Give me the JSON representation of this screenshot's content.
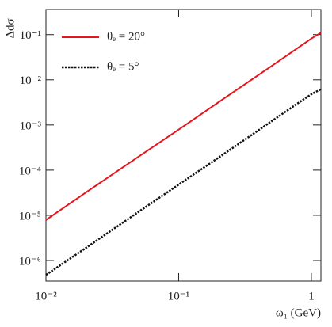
{
  "chart_data": {
    "type": "line",
    "x_label": "ω₁ (GeV)",
    "y_label": "Δdσ",
    "xscale": "log",
    "yscale": "log",
    "xlim": [
      0.01,
      1.18
    ],
    "ylim": [
      3.5e-07,
      0.36
    ],
    "xticks": [
      {
        "value": 0.01,
        "label": "10⁻²"
      },
      {
        "value": 0.1,
        "label": "10⁻¹"
      },
      1
    ],
    "yticks": [
      {
        "value": 1e-06,
        "label": "10⁻⁶"
      },
      {
        "value": 1e-05,
        "label": "10⁻⁵"
      },
      {
        "value": 0.0001,
        "label": "10⁻⁴"
      },
      {
        "value": 0.001,
        "label": "10⁻³"
      },
      {
        "value": 0.01,
        "label": "10⁻²"
      },
      {
        "value": 0.1,
        "label": "10⁻¹"
      }
    ],
    "legend": "upper left",
    "x": [
      0.01,
      0.02,
      0.05,
      0.1,
      0.2,
      0.5,
      0.8,
      1,
      1.18
    ],
    "series": [
      {
        "name": "θₑ = 20°",
        "color": "#e8141c",
        "style": "solid",
        "values": [
          7.9e-06,
          3.2e-05,
          0.0002,
          0.00079,
          0.0032,
          0.02,
          0.052,
          0.082,
          0.11
        ]
      },
      {
        "name": "θₑ = 5°",
        "color": "#111111",
        "style": "dotted",
        "values": [
          4.8e-07,
          1.9e-06,
          1.2e-05,
          4.8e-05,
          0.00019,
          0.0012,
          0.0031,
          0.0048,
          0.0062
        ]
      }
    ]
  }
}
